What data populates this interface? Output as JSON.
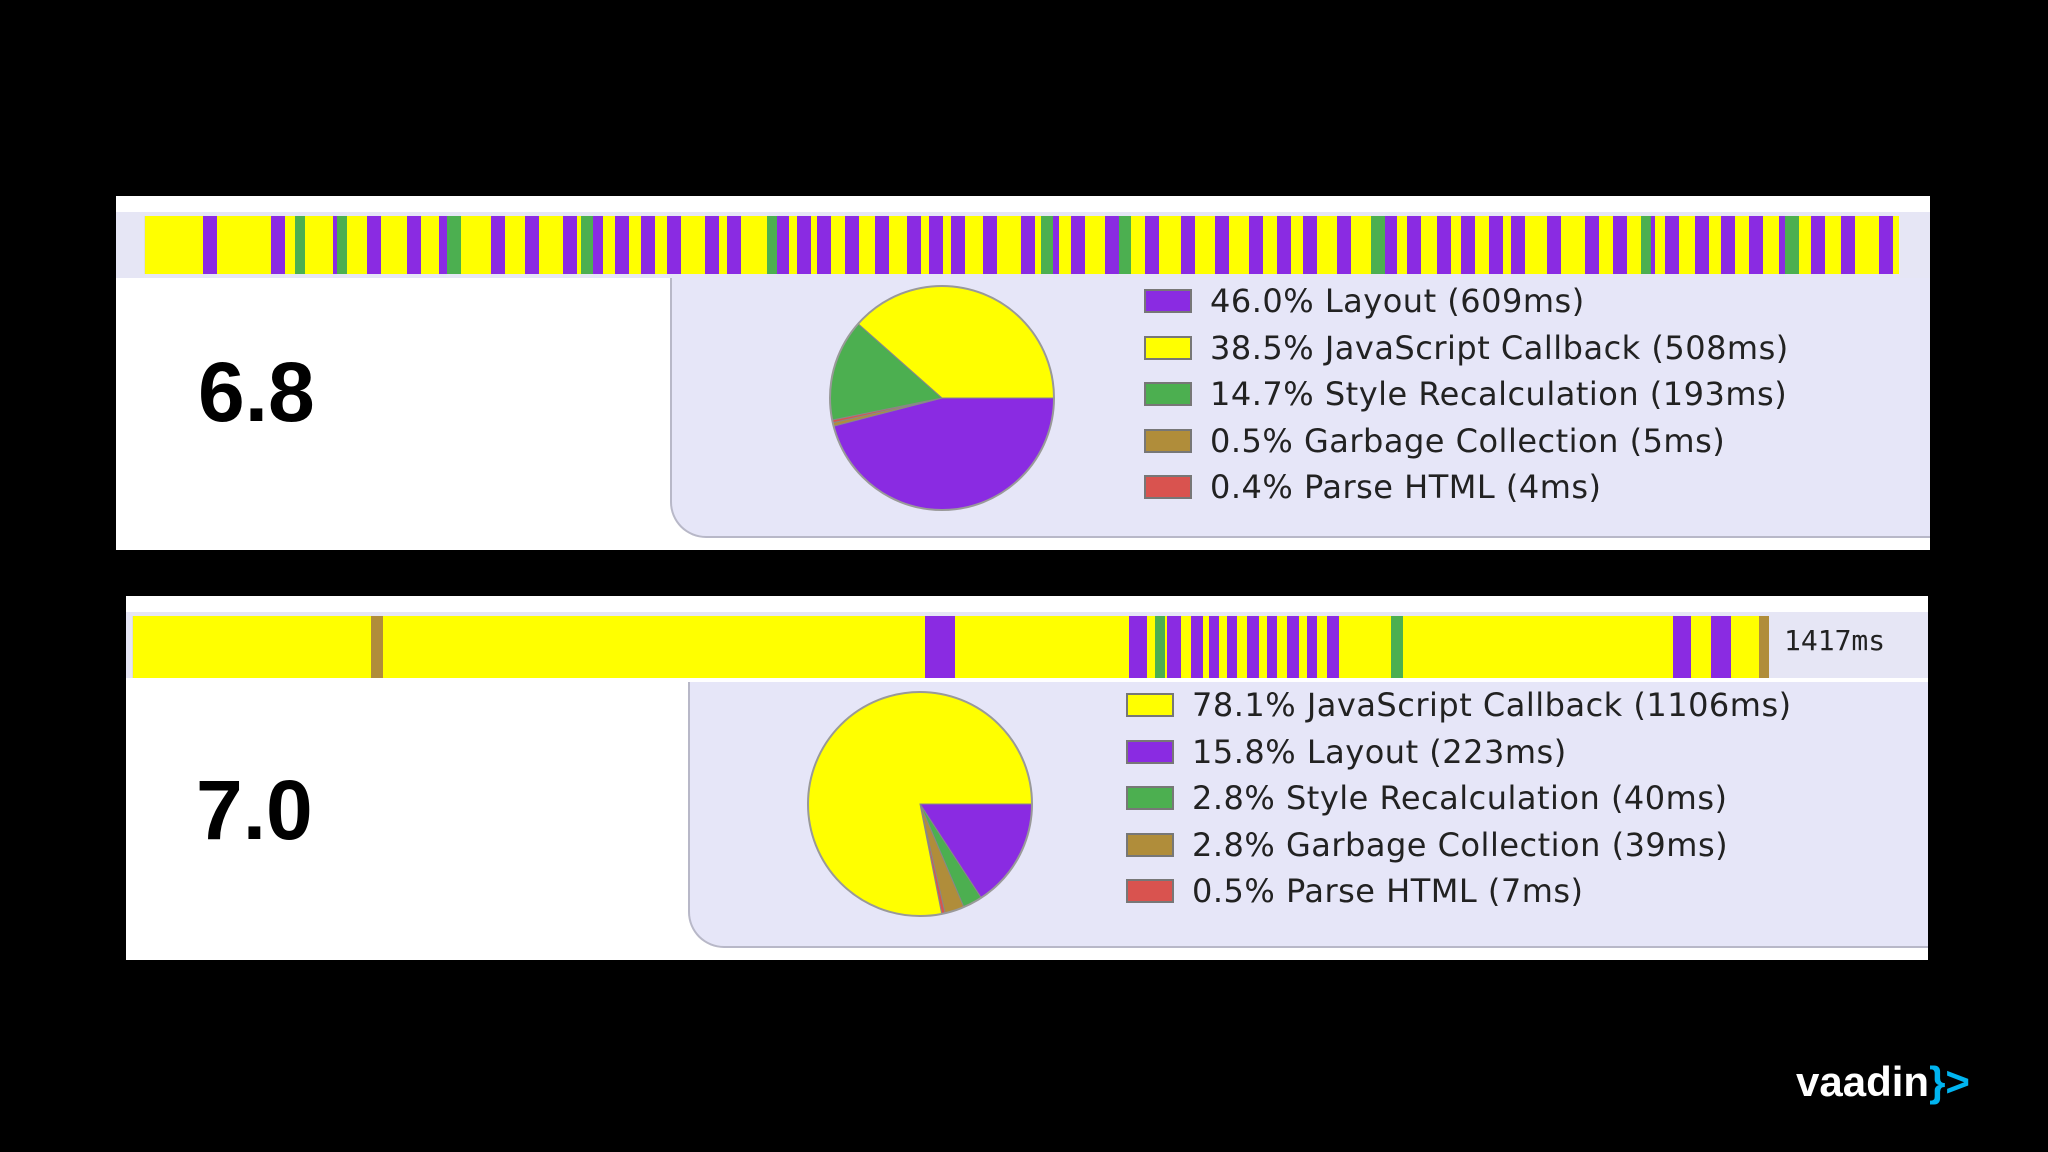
{
  "colors": {
    "layout": "#8a2be2",
    "javascript_callback": "#ffff00",
    "style_recalculation": "#4caf50",
    "garbage_collection": "#b08d3a",
    "parse_html": "#d9534f"
  },
  "chart_data": [
    {
      "type": "pie",
      "version_label": "6.8",
      "slices": [
        {
          "label": "46.0% Layout (609ms)",
          "name": "Layout",
          "percent": 46.0,
          "ms": 609,
          "color": "#8a2be2"
        },
        {
          "label": "38.5% JavaScript Callback (508ms)",
          "name": "JavaScript Callback",
          "percent": 38.5,
          "ms": 508,
          "color": "#ffff00"
        },
        {
          "label": "14.7% Style Recalculation (193ms)",
          "name": "Style Recalculation",
          "percent": 14.7,
          "ms": 193,
          "color": "#4caf50"
        },
        {
          "label": "0.5% Garbage Collection (5ms)",
          "name": "Garbage Collection",
          "percent": 0.5,
          "ms": 5,
          "color": "#b08d3a"
        },
        {
          "label": "0.4% Parse HTML (4ms)",
          "name": "Parse HTML",
          "percent": 0.4,
          "ms": 4,
          "color": "#d9534f"
        }
      ],
      "pie_order": [
        "Layout",
        "Garbage Collection",
        "Parse HTML",
        "Style Recalculation",
        "JavaScript Callback"
      ]
    },
    {
      "type": "pie",
      "version_label": "7.0",
      "total_label": "1417ms",
      "slices": [
        {
          "label": "78.1% JavaScript Callback (1106ms)",
          "name": "JavaScript Callback",
          "percent": 78.1,
          "ms": 1106,
          "color": "#ffff00"
        },
        {
          "label": "15.8% Layout (223ms)",
          "name": "Layout",
          "percent": 15.8,
          "ms": 223,
          "color": "#8a2be2"
        },
        {
          "label": "2.8% Style Recalculation (40ms)",
          "name": "Style Recalculation",
          "percent": 2.8,
          "ms": 40,
          "color": "#4caf50"
        },
        {
          "label": "2.8% Garbage Collection (39ms)",
          "name": "Garbage Collection",
          "percent": 2.8,
          "ms": 39,
          "color": "#b08d3a"
        },
        {
          "label": "0.5% Parse HTML (7ms)",
          "name": "Parse HTML",
          "percent": 0.5,
          "ms": 7,
          "color": "#d9534f"
        }
      ],
      "pie_order": [
        "Layout",
        "Style Recalculation",
        "Garbage Collection",
        "Parse HTML",
        "JavaScript Callback"
      ]
    }
  ],
  "logo": {
    "text": "vaadin",
    "mark": "}>"
  }
}
